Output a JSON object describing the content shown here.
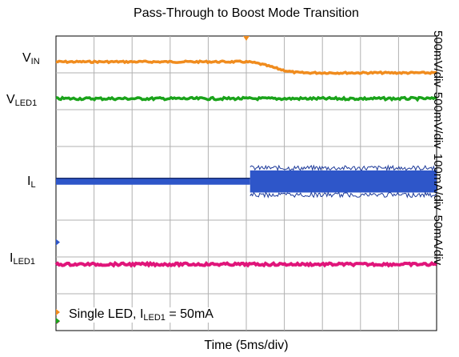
{
  "chart_data": {
    "type": "line",
    "title": "Pass-Through to Boost Mode Transition",
    "xlabel": "Time (5ms/div)",
    "x_divisions": 10,
    "y_divisions": 8,
    "grid": true,
    "trigger_position_div": 5,
    "colors": {
      "VIN": "#f08c1e",
      "VLED1": "#1aa31a",
      "IL": "#2e56c9",
      "ILED1": "#e0157a"
    },
    "channels": [
      {
        "id": "VIN",
        "label_main": "V",
        "label_sub": "IN",
        "scale": "500mV/div",
        "level_before_div": 0.7,
        "level_after_div": 1.0,
        "transition_start_div": 4.9,
        "transition_end_div": 6.5
      },
      {
        "id": "VLED1",
        "label_main": "V",
        "label_sub": "LED1",
        "scale": "500mV/div",
        "level_div": 1.7
      },
      {
        "id": "IL",
        "label_main": "I",
        "label_sub": "L",
        "scale": "100mA/div",
        "level_div": 3.95,
        "ripple_start_div": 5.1,
        "ripple_amplitude_div": 0.6
      },
      {
        "id": "ILED1",
        "label_main": "I",
        "label_sub": "LED1",
        "scale": "50mA/div",
        "level_div": 6.2
      }
    ],
    "annotation": {
      "text_main": "Single LED, I",
      "text_sub": "LED1",
      "text_tail": " = 50mA"
    }
  }
}
